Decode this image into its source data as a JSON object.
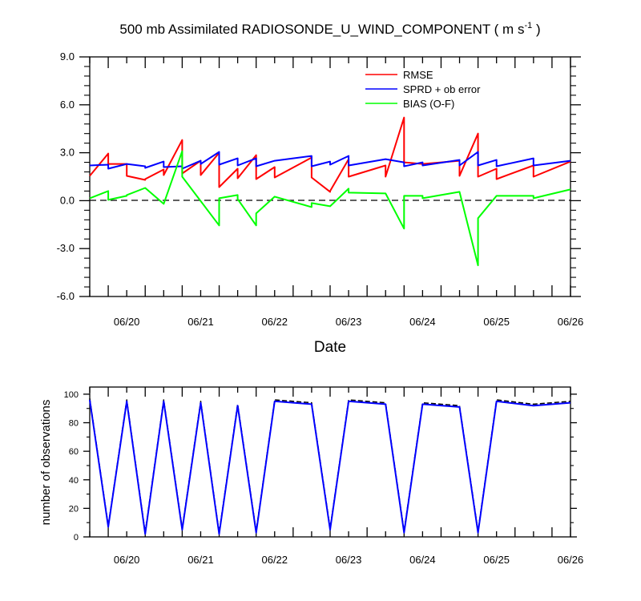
{
  "chart_data": [
    {
      "type": "line",
      "title_main": "500 mb Assimilated RADIOSONDE_U_WIND_COMPONENT ( m s",
      "title_sup": "-1",
      "title_end": " )",
      "xlabel": "Date",
      "ylabel": "",
      "xlim": [
        0,
        6.5
      ],
      "ylim": [
        -6,
        9
      ],
      "yticks": [
        9,
        6,
        3,
        0,
        -3,
        -6
      ],
      "ytick_labels": [
        "9.0",
        "6.0",
        "3.0",
        "0.0",
        "-3.0",
        "-6.0"
      ],
      "xticks": [
        0.5,
        1.5,
        2.5,
        3.5,
        4.5,
        5.5,
        6.5
      ],
      "xtick_labels": [
        "06/20",
        "06/21",
        "06/22",
        "06/23",
        "06/24",
        "06/25",
        "06/26"
      ],
      "zero_line": "dashed",
      "legend_position": "top-right",
      "series": [
        {
          "name": "RMSE",
          "color": "#ff0000",
          "points": [
            [
              0,
              1.55
            ],
            [
              0.25,
              2.95
            ],
            [
              0.25,
              2.3
            ],
            [
              0.5,
              2.3
            ],
            [
              0.5,
              1.55
            ],
            [
              0.75,
              1.3
            ],
            [
              0.75,
              1.35
            ],
            [
              1.0,
              1.95
            ],
            [
              1.0,
              1.6
            ],
            [
              1.25,
              3.8
            ],
            [
              1.25,
              1.7
            ],
            [
              1.5,
              2.5
            ],
            [
              1.5,
              1.6
            ],
            [
              1.75,
              3.0
            ],
            [
              1.75,
              0.85
            ],
            [
              2.0,
              2.0
            ],
            [
              2.0,
              1.4
            ],
            [
              2.25,
              2.85
            ],
            [
              2.25,
              1.35
            ],
            [
              2.5,
              2.1
            ],
            [
              2.5,
              1.45
            ],
            [
              3.0,
              2.7
            ],
            [
              3.0,
              1.45
            ],
            [
              3.25,
              0.55
            ],
            [
              3.25,
              0.6
            ],
            [
              3.5,
              2.6
            ],
            [
              3.5,
              1.5
            ],
            [
              4.0,
              2.2
            ],
            [
              4.0,
              1.5
            ],
            [
              4.25,
              5.2
            ],
            [
              4.25,
              2.4
            ],
            [
              4.5,
              2.3
            ],
            [
              5.0,
              2.5
            ],
            [
              5.0,
              1.55
            ],
            [
              5.25,
              4.2
            ],
            [
              5.25,
              1.5
            ],
            [
              5.5,
              2.0
            ],
            [
              5.5,
              1.35
            ],
            [
              6.0,
              2.2
            ],
            [
              6.0,
              1.5
            ],
            [
              6.5,
              2.45
            ]
          ]
        },
        {
          "name": "SPRD + ob error",
          "color": "#0000ff",
          "points": [
            [
              0,
              2.2
            ],
            [
              0.25,
              2.25
            ],
            [
              0.25,
              2.0
            ],
            [
              0.5,
              2.3
            ],
            [
              0.75,
              2.15
            ],
            [
              0.75,
              2.05
            ],
            [
              1.0,
              2.45
            ],
            [
              1.0,
              2.1
            ],
            [
              1.25,
              2.15
            ],
            [
              1.25,
              2.0
            ],
            [
              1.5,
              2.5
            ],
            [
              1.5,
              2.3
            ],
            [
              1.75,
              3.05
            ],
            [
              1.75,
              2.25
            ],
            [
              2.0,
              2.65
            ],
            [
              2.0,
              2.2
            ],
            [
              2.25,
              2.65
            ],
            [
              2.25,
              2.15
            ],
            [
              2.5,
              2.5
            ],
            [
              3.0,
              2.8
            ],
            [
              3.0,
              2.15
            ],
            [
              3.25,
              2.45
            ],
            [
              3.25,
              2.25
            ],
            [
              3.5,
              2.8
            ],
            [
              3.5,
              2.2
            ],
            [
              4.0,
              2.6
            ],
            [
              4.25,
              2.4
            ],
            [
              4.25,
              2.15
            ],
            [
              4.5,
              2.4
            ],
            [
              4.5,
              2.2
            ],
            [
              5.0,
              2.55
            ],
            [
              5.0,
              2.2
            ],
            [
              5.25,
              3.05
            ],
            [
              5.25,
              2.2
            ],
            [
              5.5,
              2.55
            ],
            [
              5.5,
              2.15
            ],
            [
              6.0,
              2.65
            ],
            [
              6.0,
              2.2
            ],
            [
              6.5,
              2.5
            ]
          ]
        },
        {
          "name": "BIAS (O-F)",
          "color": "#00ff00",
          "points": [
            [
              0,
              0.15
            ],
            [
              0.25,
              0.6
            ],
            [
              0.25,
              0.05
            ],
            [
              0.5,
              0.3
            ],
            [
              0.5,
              0.35
            ],
            [
              0.75,
              0.8
            ],
            [
              1.0,
              -0.2
            ],
            [
              1.25,
              3.1
            ],
            [
              1.25,
              1.5
            ],
            [
              1.75,
              -1.55
            ],
            [
              1.75,
              0.15
            ],
            [
              2.0,
              0.35
            ],
            [
              2.0,
              0.1
            ],
            [
              2.25,
              -1.55
            ],
            [
              2.25,
              -0.8
            ],
            [
              2.5,
              0.25
            ],
            [
              3.0,
              -0.4
            ],
            [
              3.0,
              -0.15
            ],
            [
              3.25,
              -0.35
            ],
            [
              3.5,
              0.75
            ],
            [
              3.5,
              0.5
            ],
            [
              4.0,
              0.45
            ],
            [
              4.25,
              -1.75
            ],
            [
              4.25,
              0.3
            ],
            [
              4.5,
              0.3
            ],
            [
              4.5,
              0.15
            ],
            [
              5.0,
              0.55
            ],
            [
              5.25,
              -4.05
            ],
            [
              5.25,
              -1.1
            ],
            [
              5.5,
              0.3
            ],
            [
              6.0,
              0.3
            ],
            [
              6.0,
              0.15
            ],
            [
              6.5,
              0.7
            ]
          ]
        }
      ]
    },
    {
      "type": "line",
      "title": "",
      "xlabel": "",
      "ylabel": "number of observations",
      "xlim": [
        0,
        6.5
      ],
      "ylim": [
        0,
        105
      ],
      "yticks": [
        0,
        20,
        40,
        60,
        80,
        100
      ],
      "ytick_labels": [
        "0",
        "20",
        "40",
        "60",
        "80",
        "100"
      ],
      "xticks": [
        0.5,
        1.5,
        2.5,
        3.5,
        4.5,
        5.5,
        6.5
      ],
      "xtick_labels": [
        "06/20",
        "06/21",
        "06/22",
        "06/23",
        "06/24",
        "06/25",
        "06/26"
      ],
      "series": [
        {
          "style": "dashed",
          "color": "#000000",
          "x": [
            0,
            0.25,
            0.5,
            0.75,
            1.0,
            1.25,
            1.5,
            1.75,
            2.0,
            2.25,
            2.5,
            3.0,
            3.25,
            3.5,
            4.0,
            4.25,
            4.5,
            5.0,
            5.25,
            5.5,
            6.0,
            6.5
          ],
          "values": [
            97,
            8,
            96,
            3,
            96,
            6,
            95,
            3,
            93,
            4,
            96,
            94,
            6,
            96,
            94,
            4,
            94,
            92,
            4,
            96,
            93,
            95
          ]
        },
        {
          "style": "solid",
          "color": "#0000ff",
          "x": [
            0,
            0.25,
            0.5,
            0.75,
            1.0,
            1.25,
            1.5,
            1.75,
            2.0,
            2.25,
            2.5,
            3.0,
            3.25,
            3.5,
            4.0,
            4.25,
            4.5,
            5.0,
            5.25,
            5.5,
            6.0,
            6.5
          ],
          "values": [
            96,
            7,
            95,
            2,
            95,
            5,
            94,
            2,
            92,
            3,
            95,
            93,
            5,
            95,
            93,
            3,
            93,
            91,
            3,
            95,
            92,
            94
          ]
        }
      ]
    }
  ]
}
